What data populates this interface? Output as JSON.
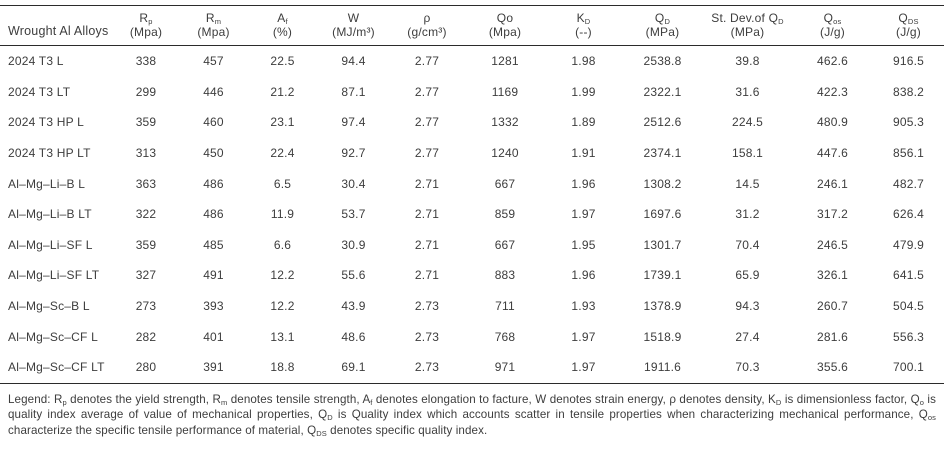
{
  "table": {
    "row_header_label": "Wrought Al Alloys",
    "columns": [
      {
        "symbol": "R",
        "sub": "p",
        "unit": "(Mpa)"
      },
      {
        "symbol": "R",
        "sub": "m",
        "unit": "(Mpa)"
      },
      {
        "symbol": "A",
        "sub": "f",
        "unit": "(%)"
      },
      {
        "symbol": "W",
        "sub": "",
        "unit": "(MJ/m³)"
      },
      {
        "symbol": "ρ",
        "sub": "",
        "unit": "(g/cm³)"
      },
      {
        "symbol": "Qo",
        "sub": "",
        "unit": "(Mpa)"
      },
      {
        "symbol": "K",
        "sub": "D",
        "unit": "(--)"
      },
      {
        "symbol": "Q",
        "sub": "D",
        "unit": "(MPa)"
      },
      {
        "symbol": "St. Dev.of Q",
        "sub": "D",
        "unit": "(MPa)"
      },
      {
        "symbol": "Q",
        "sub": "os",
        "unit": "(J/g)"
      },
      {
        "symbol": "Q",
        "sub": "DS",
        "unit": "(J/g)"
      }
    ],
    "rows": [
      {
        "name": "2024 T3 L",
        "values": [
          "338",
          "457",
          "22.5",
          "94.4",
          "2.77",
          "1281",
          "1.98",
          "2538.8",
          "39.8",
          "462.6",
          "916.5"
        ]
      },
      {
        "name": "2024 T3 LT",
        "values": [
          "299",
          "446",
          "21.2",
          "87.1",
          "2.77",
          "1169",
          "1.99",
          "2322.1",
          "31.6",
          "422.3",
          "838.2"
        ]
      },
      {
        "name": "2024 T3 HP L",
        "values": [
          "359",
          "460",
          "23.1",
          "97.4",
          "2.77",
          "1332",
          "1.89",
          "2512.6",
          "224.5",
          "480.9",
          "905.3"
        ]
      },
      {
        "name": "2024 T3 HP LT",
        "values": [
          "313",
          "450",
          "22.4",
          "92.7",
          "2.77",
          "1240",
          "1.91",
          "2374.1",
          "158.1",
          "447.6",
          "856.1"
        ]
      },
      {
        "name": "Al–Mg–Li–B L",
        "values": [
          "363",
          "486",
          "6.5",
          "30.4",
          "2.71",
          "667",
          "1.96",
          "1308.2",
          "14.5",
          "246.1",
          "482.7"
        ]
      },
      {
        "name": "Al–Mg–Li–B LT",
        "values": [
          "322",
          "486",
          "11.9",
          "53.7",
          "2.71",
          "859",
          "1.97",
          "1697.6",
          "31.2",
          "317.2",
          "626.4"
        ]
      },
      {
        "name": "Al–Mg–Li–SF L",
        "values": [
          "359",
          "485",
          "6.6",
          "30.9",
          "2.71",
          "667",
          "1.95",
          "1301.7",
          "70.4",
          "246.5",
          "479.9"
        ]
      },
      {
        "name": "Al–Mg–Li–SF LT",
        "values": [
          "327",
          "491",
          "12.2",
          "55.6",
          "2.71",
          "883",
          "1.96",
          "1739.1",
          "65.9",
          "326.1",
          "641.5"
        ]
      },
      {
        "name": "Al–Mg–Sc–B L",
        "values": [
          "273",
          "393",
          "12.2",
          "43.9",
          "2.73",
          "711",
          "1.93",
          "1378.9",
          "94.3",
          "260.7",
          "504.5"
        ]
      },
      {
        "name": "Al–Mg–Sc–CF L",
        "values": [
          "282",
          "401",
          "13.1",
          "48.6",
          "2.73",
          "768",
          "1.97",
          "1518.9",
          "27.4",
          "281.6",
          "556.3"
        ]
      },
      {
        "name": "Al–Mg–Sc–CF LT",
        "values": [
          "280",
          "391",
          "18.8",
          "69.1",
          "2.73",
          "971",
          "1.97",
          "1911.6",
          "70.3",
          "355.6",
          "700.1"
        ]
      }
    ]
  },
  "legend": {
    "segments": [
      {
        "t": "Legend: R"
      },
      {
        "sub": "p"
      },
      {
        "t": " denotes the yield strength, R"
      },
      {
        "sub": "m"
      },
      {
        "t": " denotes tensile strength, A"
      },
      {
        "sub": "f"
      },
      {
        "t": " denotes elongation to facture, W denotes strain energy, ρ denotes density, K"
      },
      {
        "sub": "D"
      },
      {
        "t": " is dimensionless factor, Q"
      },
      {
        "sub": "o"
      },
      {
        "t": " is quality index average of value of mechanical properties, Q"
      },
      {
        "sub": "D"
      },
      {
        "t": " is Quality index which accounts scatter in tensile properties when characterizing mechanical performance, Q"
      },
      {
        "sub": "os"
      },
      {
        "t": " characterize the specific tensile performance of material, Q"
      },
      {
        "sub": "DS"
      },
      {
        "t": " denotes specific quality index."
      }
    ]
  }
}
